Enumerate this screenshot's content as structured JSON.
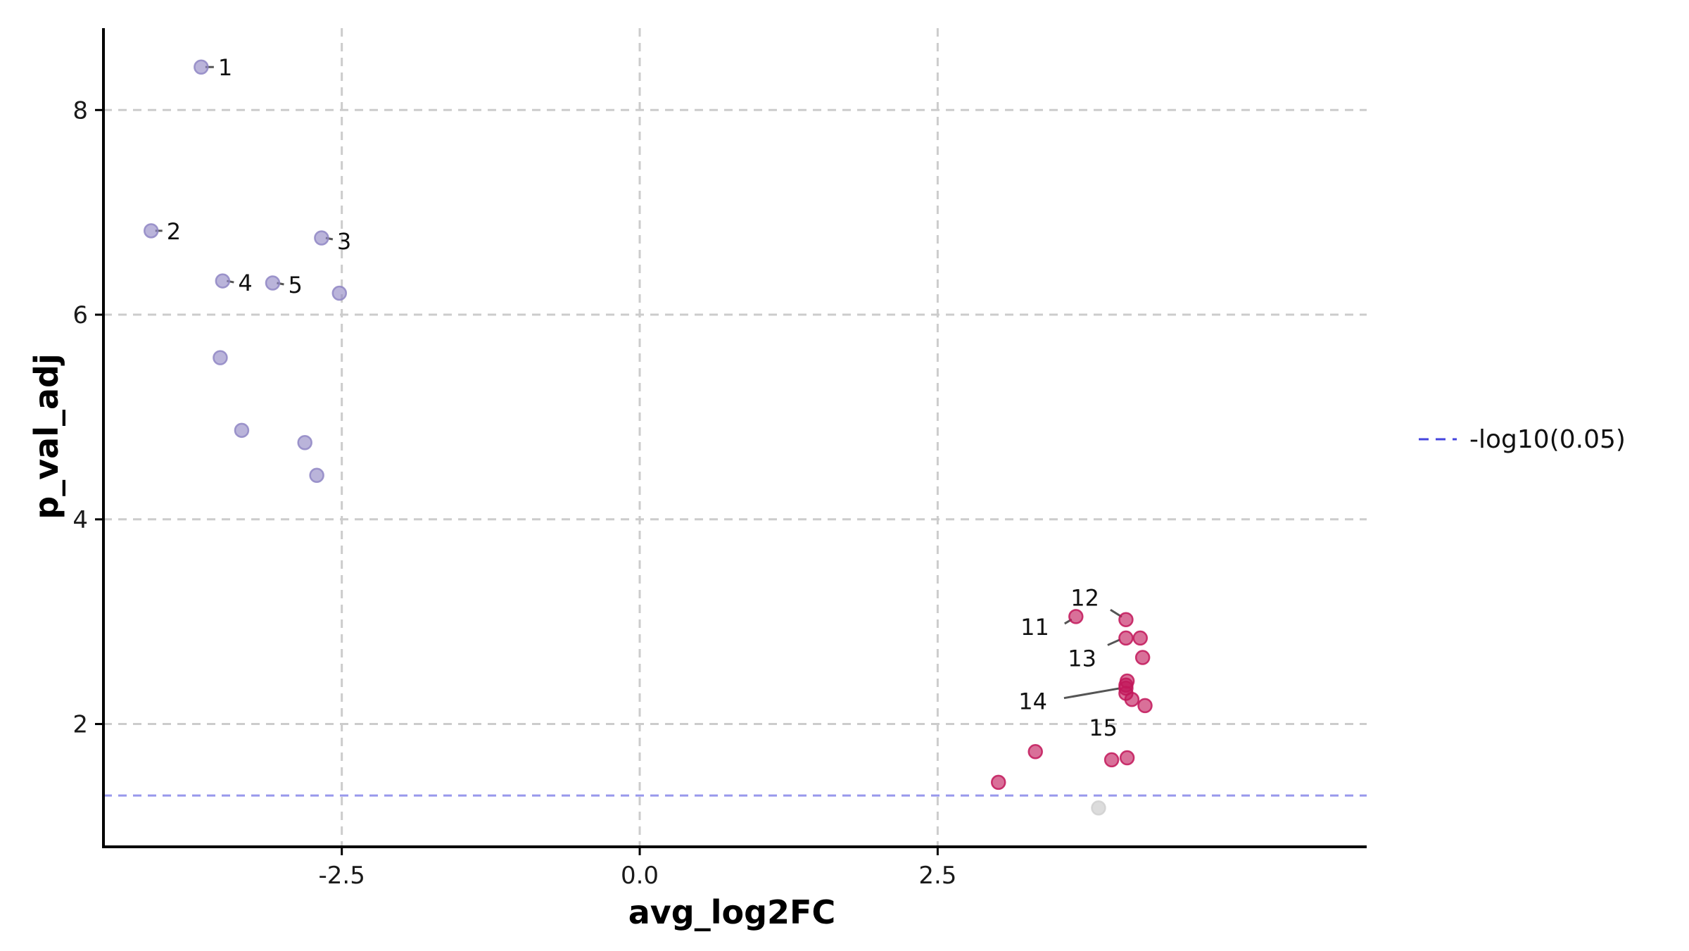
{
  "chart_data": {
    "type": "scatter",
    "title": "",
    "xlabel": "avg_log2FC",
    "ylabel": "p_val_adj",
    "xlim": [
      -4.5,
      6.1
    ],
    "ylim": [
      0.8,
      8.8
    ],
    "x_ticks": [
      -2.5,
      0.0,
      2.5
    ],
    "x_tick_labels": [
      "-2.5",
      "0.0",
      "2.5"
    ],
    "y_ticks": [
      2,
      4,
      6,
      8
    ],
    "y_tick_labels": [
      "2",
      "4",
      "6",
      "8"
    ],
    "grid": true,
    "legend_position": "right",
    "threshold": {
      "y": 1.30103,
      "label": "-log10(0.05)",
      "color": "#4444dd"
    },
    "colors": {
      "down": "#8f86c4",
      "up": "#c2185b",
      "ns": "#d0d0d0",
      "grid": "#cccccc",
      "label_line": "#555555"
    },
    "series": [
      {
        "group": "down",
        "points": [
          {
            "x": -3.68,
            "y": 8.42,
            "label": "1"
          },
          {
            "x": -4.1,
            "y": 6.82,
            "label": "2"
          },
          {
            "x": -2.67,
            "y": 6.75,
            "label": "3"
          },
          {
            "x": -3.5,
            "y": 6.33,
            "label": "4"
          },
          {
            "x": -3.08,
            "y": 6.31,
            "label": "5"
          },
          {
            "x": -2.52,
            "y": 6.21,
            "label": ""
          },
          {
            "x": -3.52,
            "y": 5.58,
            "label": ""
          },
          {
            "x": -3.34,
            "y": 4.87,
            "label": ""
          },
          {
            "x": -2.81,
            "y": 4.75,
            "label": ""
          },
          {
            "x": -2.71,
            "y": 4.43,
            "label": ""
          }
        ]
      },
      {
        "group": "up",
        "points": [
          {
            "x": 3.66,
            "y": 3.05,
            "label": "11"
          },
          {
            "x": 4.08,
            "y": 3.02,
            "label": "12"
          },
          {
            "x": 4.08,
            "y": 2.84,
            "label": "13"
          },
          {
            "x": 4.08,
            "y": 2.35,
            "label": "14"
          },
          {
            "x": 4.08,
            "y": 2.3,
            "label": "15"
          },
          {
            "x": 4.2,
            "y": 2.84,
            "label": ""
          },
          {
            "x": 4.22,
            "y": 2.65,
            "label": ""
          },
          {
            "x": 4.09,
            "y": 2.42,
            "label": ""
          },
          {
            "x": 4.08,
            "y": 2.38,
            "label": ""
          },
          {
            "x": 4.13,
            "y": 2.24,
            "label": ""
          },
          {
            "x": 4.24,
            "y": 2.18,
            "label": ""
          },
          {
            "x": 3.32,
            "y": 1.73,
            "label": ""
          },
          {
            "x": 3.96,
            "y": 1.65,
            "label": ""
          },
          {
            "x": 4.09,
            "y": 1.67,
            "label": ""
          },
          {
            "x": 3.01,
            "y": 1.43,
            "label": ""
          }
        ]
      },
      {
        "group": "ns",
        "points": [
          {
            "x": 3.85,
            "y": 1.18,
            "label": ""
          }
        ]
      }
    ]
  }
}
